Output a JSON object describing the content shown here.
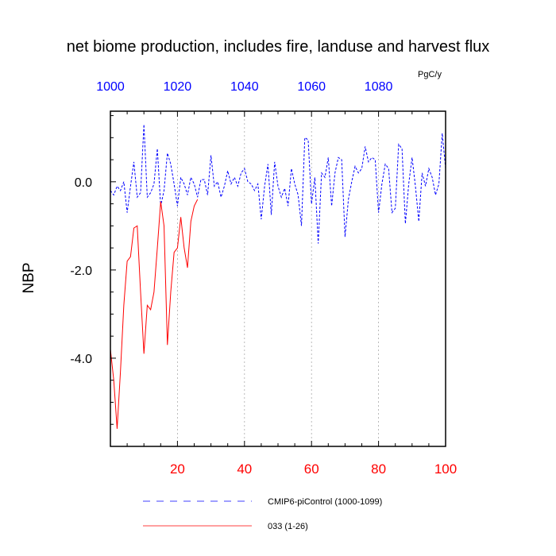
{
  "chart_data": {
    "type": "line",
    "title": "net biome production, includes fire, landuse and harvest flux",
    "units": "PgC/y",
    "ylabel": "NBP",
    "xlim": [
      0,
      100
    ],
    "ylim": [
      -6.0,
      1.6
    ],
    "x_ticks": [
      20,
      40,
      60,
      80,
      100
    ],
    "x_tick_labels": [
      "20",
      "40",
      "60",
      "80",
      "100"
    ],
    "x_top_tick_labels": [
      "1000",
      "1020",
      "1040",
      "1060",
      "1080"
    ],
    "y_ticks": [
      0.0,
      -2.0,
      -4.0
    ],
    "y_tick_labels": [
      "0.0",
      "-2.0",
      "-4.0"
    ],
    "grid": "vertical dashed at x = 20, 40, 60, 80",
    "colors": {
      "control": "#0000ff",
      "experiment": "#ff0000",
      "top_axis": "#0000ff",
      "bottom_axis": "#ff0000"
    },
    "series": [
      {
        "name": "CMIP6-piControl (1000-1099)",
        "color": "#0000ff",
        "style": "dashed",
        "x": [
          0,
          1,
          2,
          3,
          4,
          5,
          6,
          7,
          8,
          9,
          10,
          11,
          12,
          13,
          14,
          15,
          16,
          17,
          18,
          19,
          20,
          21,
          22,
          23,
          24,
          25,
          26,
          27,
          28,
          29,
          30,
          31,
          32,
          33,
          34,
          35,
          36,
          37,
          38,
          39,
          40,
          41,
          42,
          43,
          44,
          45,
          46,
          47,
          48,
          49,
          50,
          51,
          52,
          53,
          54,
          55,
          56,
          57,
          58,
          59,
          60,
          61,
          62,
          63,
          64,
          65,
          66,
          67,
          68,
          69,
          70,
          71,
          72,
          73,
          74,
          75,
          76,
          77,
          78,
          79,
          80,
          81,
          82,
          83,
          84,
          85,
          86,
          87,
          88,
          89,
          90,
          91,
          92,
          93,
          94,
          95,
          96,
          97,
          98,
          99,
          100
        ],
        "values": [
          -0.2,
          -0.3,
          -0.1,
          -0.2,
          0.0,
          -0.7,
          -0.1,
          0.45,
          -0.35,
          -0.25,
          1.3,
          -0.35,
          -0.25,
          -0.05,
          0.75,
          -0.55,
          -0.2,
          0.65,
          0.4,
          -0.05,
          -0.55,
          0.1,
          -0.05,
          -0.3,
          0.1,
          -0.05,
          -0.35,
          0.05,
          0.05,
          -0.3,
          0.6,
          -0.1,
          0.0,
          -0.35,
          -0.1,
          0.25,
          -0.05,
          0.1,
          -0.1,
          0.2,
          0.3,
          0.0,
          -0.05,
          -0.2,
          -0.05,
          -0.85,
          -0.1,
          0.4,
          -0.75,
          0.45,
          -0.1,
          -0.35,
          -0.15,
          -0.55,
          0.3,
          -0.05,
          -0.3,
          -1.0,
          1.0,
          0.95,
          -0.5,
          0.1,
          -1.4,
          0.2,
          0.1,
          0.55,
          -0.55,
          0.2,
          0.55,
          0.5,
          -1.25,
          -0.4,
          0.0,
          0.35,
          0.2,
          0.3,
          0.8,
          0.45,
          0.55,
          0.5,
          -0.7,
          -0.05,
          0.4,
          0.3,
          -0.7,
          -0.6,
          0.85,
          0.75,
          -0.95,
          -0.05,
          0.55,
          -0.1,
          -0.9,
          0.2,
          -0.1,
          0.3,
          0.1,
          -0.3,
          -0.05,
          1.1,
          0.3
        ]
      },
      {
        "name": "033 (1-26)",
        "color": "#ff0000",
        "style": "solid",
        "x": [
          0,
          1,
          2,
          3,
          4,
          5,
          6,
          7,
          8,
          9,
          10,
          11,
          12,
          13,
          14,
          15,
          16,
          17,
          18,
          19,
          20,
          21,
          22,
          23,
          24,
          25,
          26
        ],
        "values": [
          -3.8,
          -4.5,
          -5.6,
          -4.3,
          -2.8,
          -1.8,
          -1.7,
          -1.05,
          -1.0,
          -2.5,
          -3.9,
          -2.8,
          -2.9,
          -2.5,
          -1.5,
          -0.45,
          -1.0,
          -3.7,
          -2.5,
          -1.6,
          -1.5,
          -0.8,
          -1.5,
          -1.95,
          -0.9,
          -0.55,
          -0.4
        ]
      }
    ]
  }
}
